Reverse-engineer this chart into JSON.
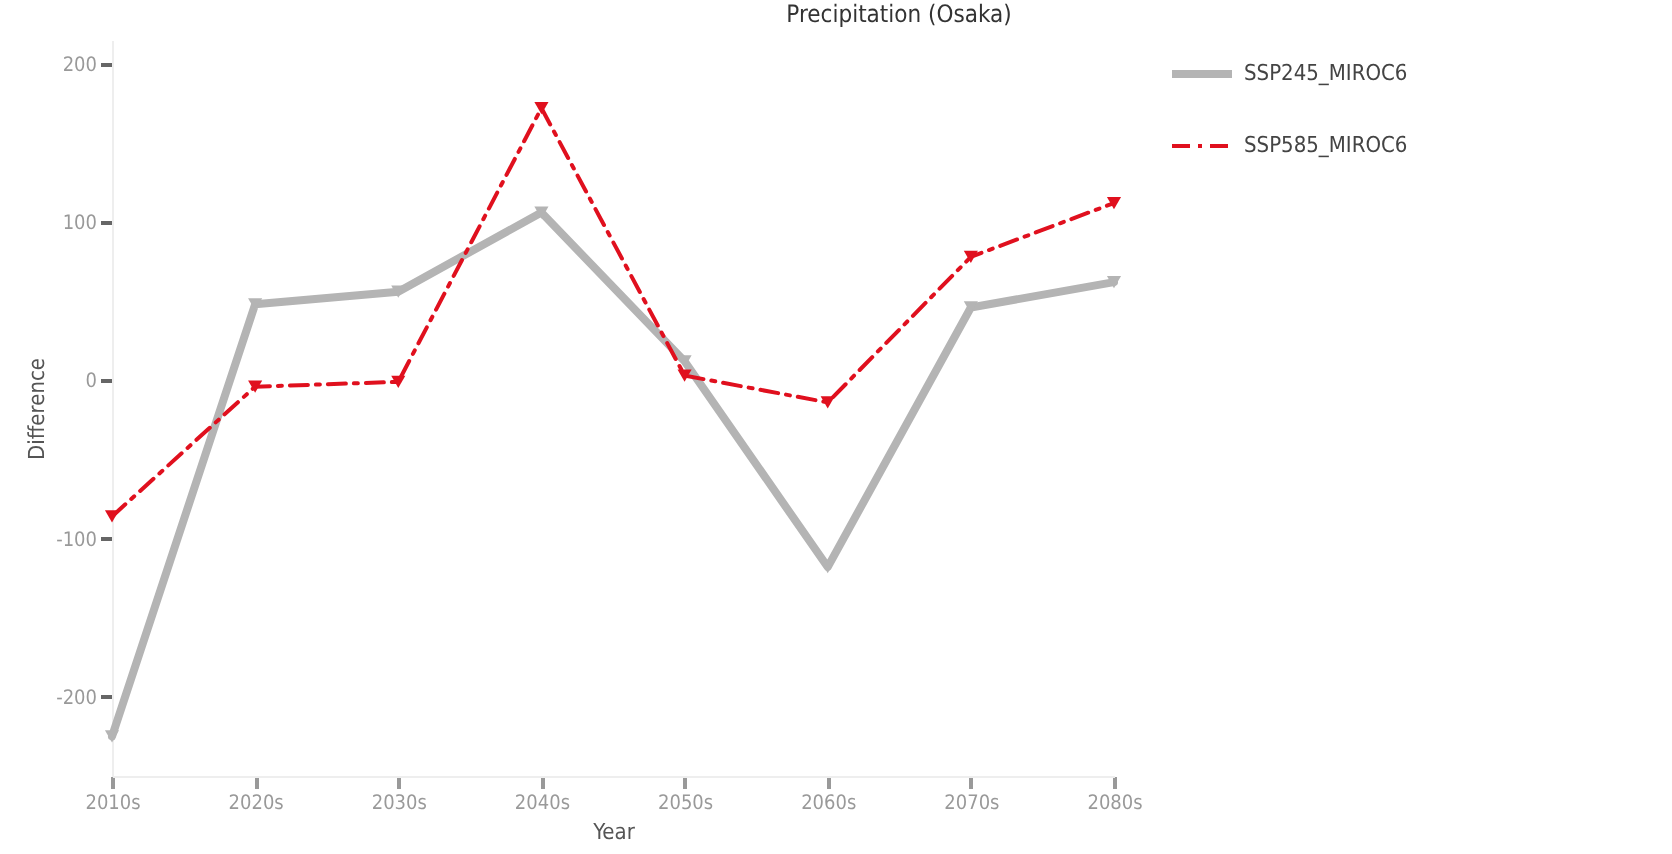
{
  "chart_data": {
    "type": "line",
    "title": "Precipitation (Osaka)",
    "xlabel": "Year",
    "ylabel": "Difference",
    "categories": [
      "2010s",
      "2020s",
      "2030s",
      "2040s",
      "2050s",
      "2060s",
      "2070s",
      "2080s"
    ],
    "series": [
      {
        "name": "SSP245_MIROC6",
        "color": "#b4b4b4",
        "line_style": "solid",
        "values": [
          -225,
          48,
          56,
          106,
          12,
          -118,
          46,
          62
        ]
      },
      {
        "name": "SSP585_MIROC6",
        "color": "#e0101e",
        "line_style": "dashed",
        "values": [
          -86,
          -4,
          -1,
          172,
          3,
          -14,
          78,
          112
        ]
      }
    ],
    "ylim": [
      -250,
      215
    ],
    "yticks": [
      -200,
      -100,
      0,
      100,
      200
    ],
    "grid": false,
    "legend": "top right",
    "marker": "triangle"
  }
}
